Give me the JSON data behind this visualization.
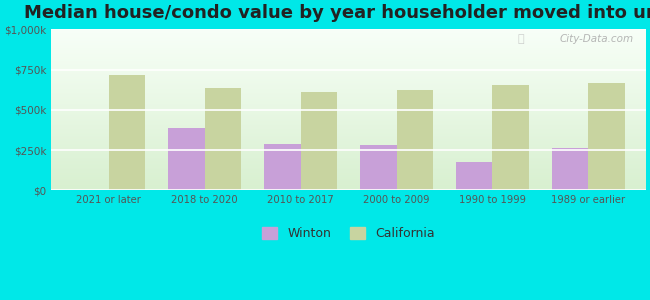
{
  "title": "Median house/condo value by year householder moved into unit",
  "categories": [
    "2021 or later",
    "2018 to 2020",
    "2010 to 2017",
    "2000 to 2009",
    "1990 to 1999",
    "1989 or earlier"
  ],
  "winton_values": [
    null,
    390000,
    290000,
    280000,
    178000,
    265000
  ],
  "california_values": [
    718000,
    635000,
    613000,
    625000,
    655000,
    668000
  ],
  "winton_color": "#c8a0d8",
  "california_color": "#c8d4a0",
  "background_color": "#00e8e8",
  "plot_bg_gradient_top": "#f8fff8",
  "plot_bg_gradient_bottom": "#d8f0d0",
  "ylim": [
    0,
    1000000
  ],
  "yticks": [
    0,
    250000,
    500000,
    750000,
    1000000
  ],
  "ytick_labels": [
    "$0",
    "$250k",
    "$500k",
    "$750k",
    "$1,000k"
  ],
  "title_fontsize": 13,
  "legend_winton": "Winton",
  "legend_california": "California",
  "watermark": "City-Data.com"
}
